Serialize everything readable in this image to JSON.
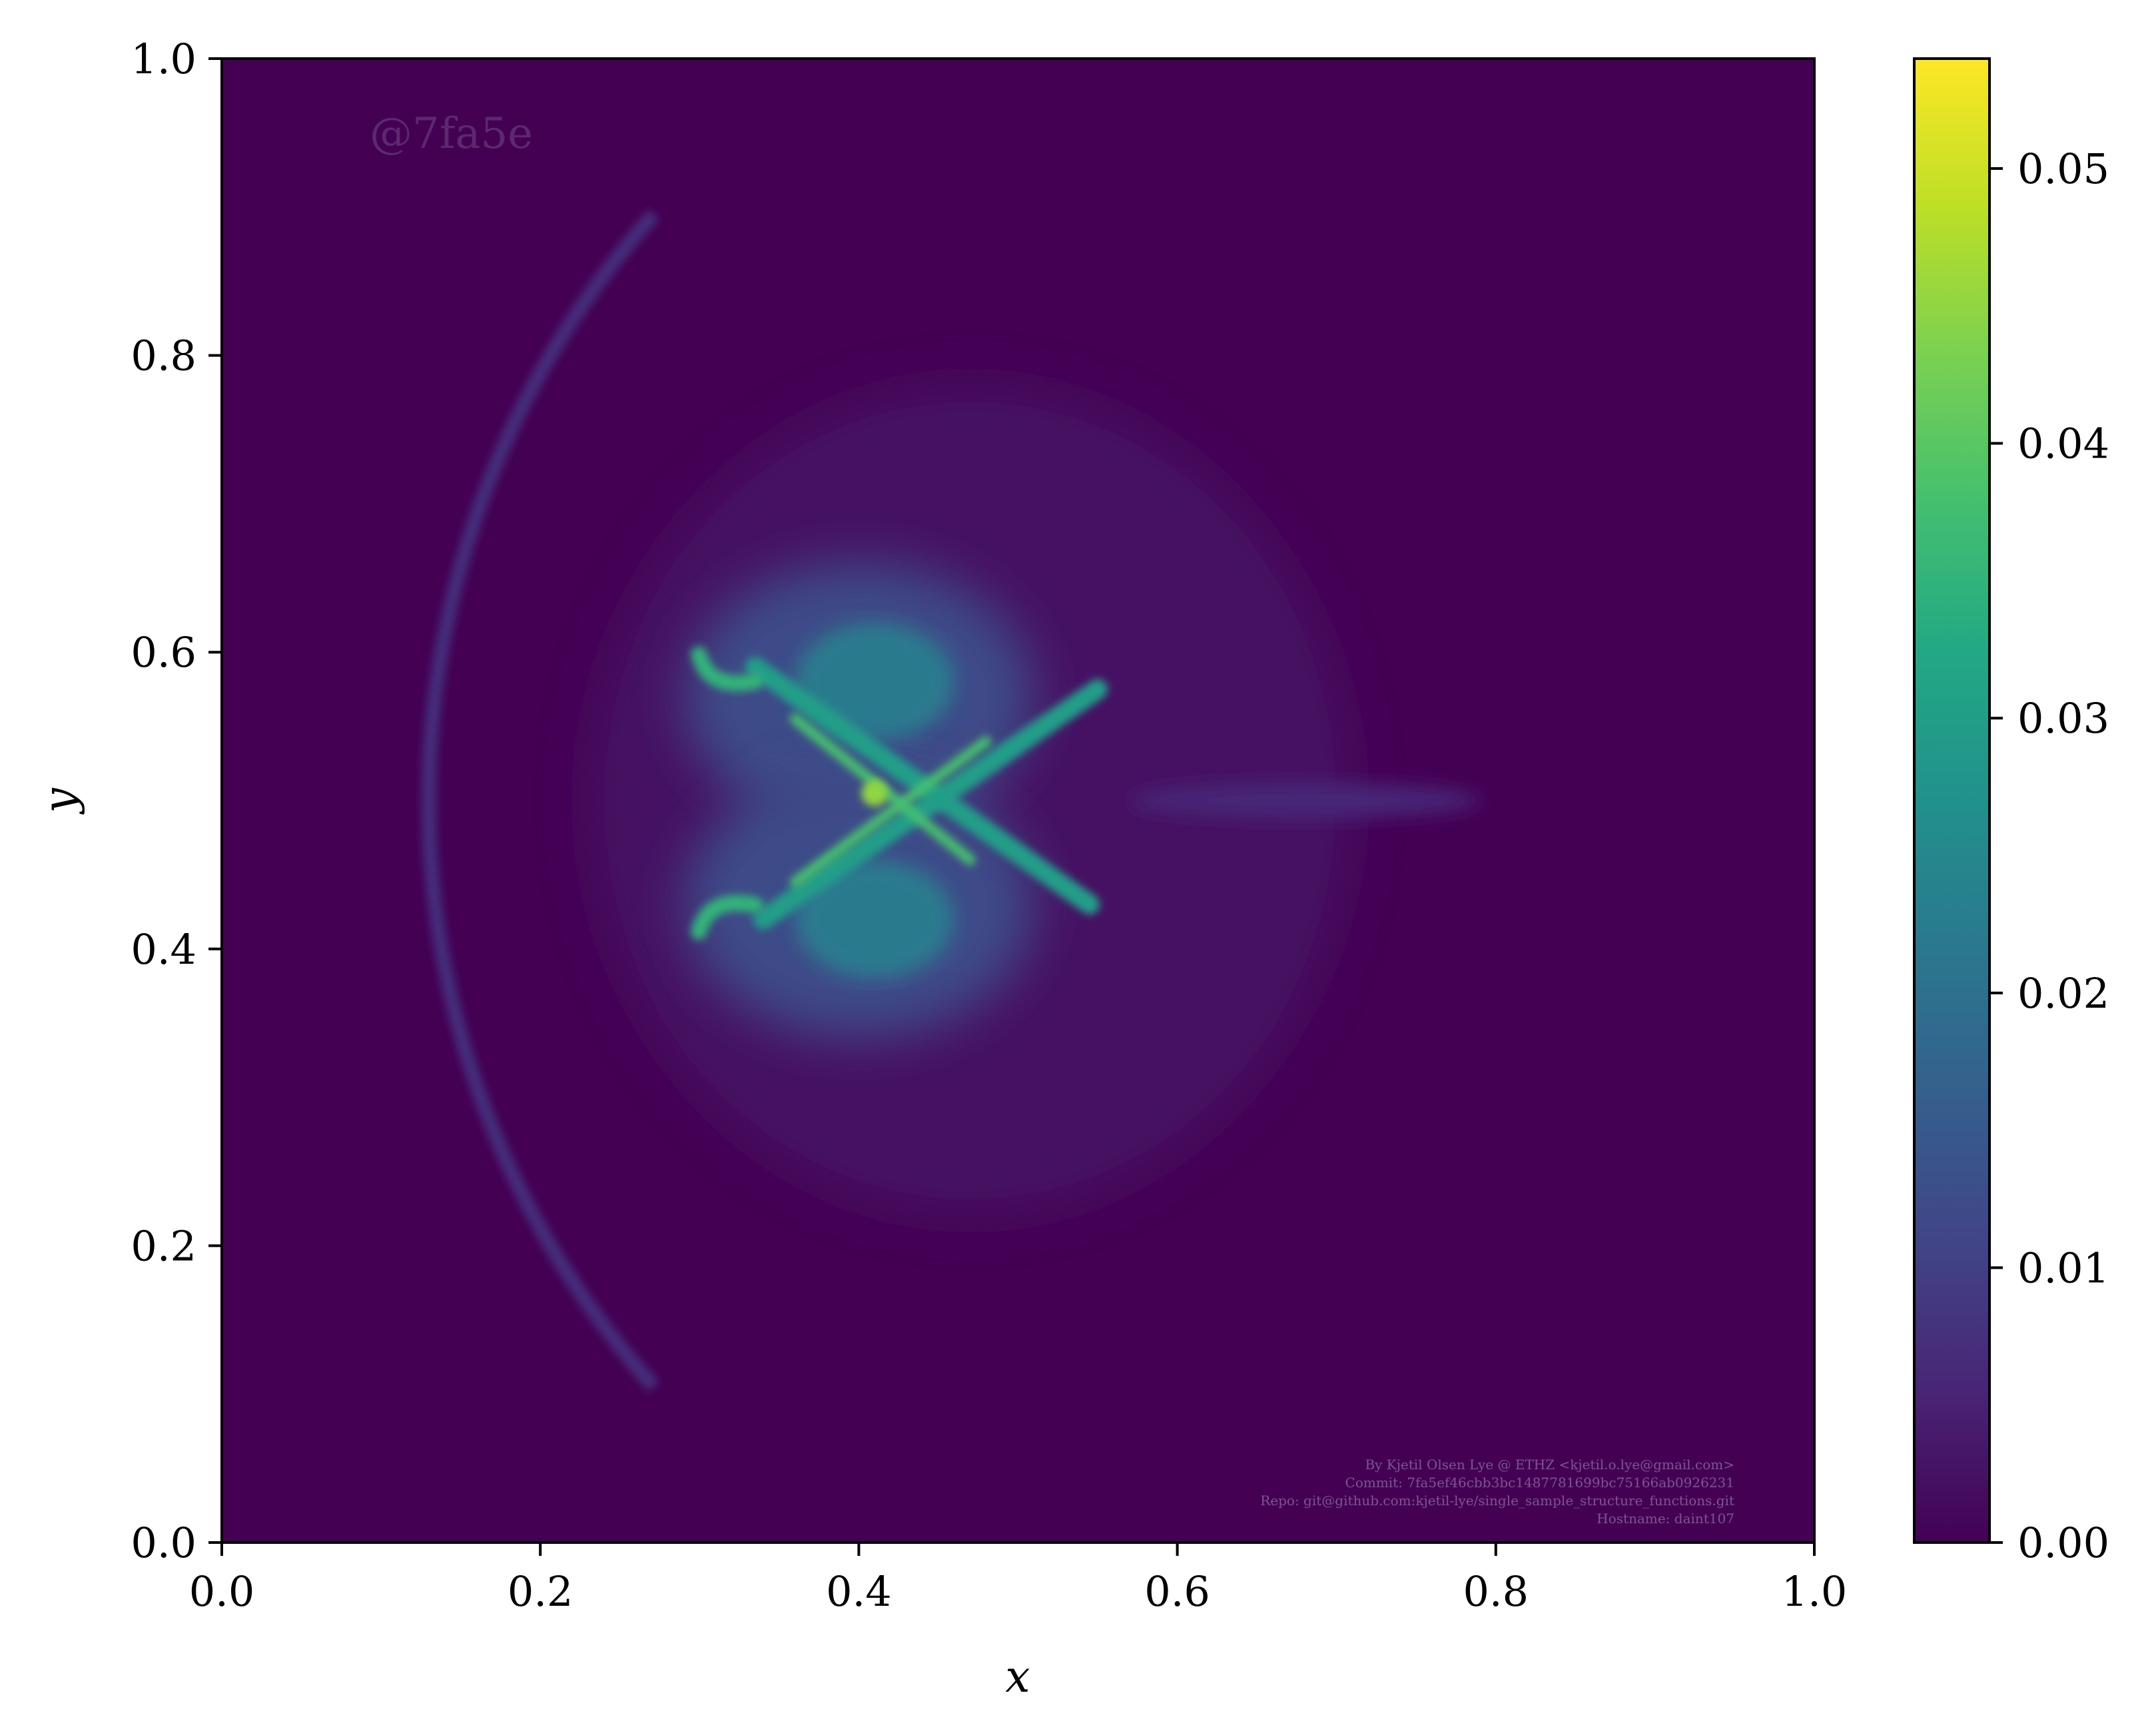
{
  "chart_data": {
    "type": "heatmap",
    "title": "",
    "xlabel": "x",
    "ylabel": "y",
    "xlim": [
      0.0,
      1.0
    ],
    "ylim": [
      0.0,
      1.0
    ],
    "x_ticks": [
      "0.0",
      "0.2",
      "0.4",
      "0.6",
      "0.8",
      "1.0"
    ],
    "y_ticks": [
      "0.0",
      "0.2",
      "0.4",
      "0.6",
      "0.8",
      "1.0"
    ],
    "x_tick_values": [
      0.0,
      0.2,
      0.4,
      0.6,
      0.8,
      1.0
    ],
    "y_tick_values": [
      0.0,
      0.2,
      0.4,
      0.6,
      0.8,
      1.0
    ],
    "colorbar": {
      "colormap": "viridis",
      "range": [
        0.0,
        0.054
      ],
      "ticks": [
        "0.00",
        "0.01",
        "0.02",
        "0.03",
        "0.04",
        "0.05"
      ],
      "tick_values": [
        0.0,
        0.01,
        0.02,
        0.03,
        0.04,
        0.05
      ]
    },
    "grid": false,
    "features": [
      {
        "name": "central-cross",
        "center": [
          0.41,
          0.505
        ],
        "peak_value": 0.045
      },
      {
        "name": "upper-hook",
        "center": [
          0.31,
          0.585
        ],
        "peak_value": 0.035
      },
      {
        "name": "lower-hook",
        "center": [
          0.31,
          0.425
        ],
        "peak_value": 0.035
      },
      {
        "name": "upper-blob",
        "center": [
          0.4,
          0.57
        ],
        "peak_value": 0.022
      },
      {
        "name": "lower-blob",
        "center": [
          0.4,
          0.43
        ],
        "peak_value": 0.022
      },
      {
        "name": "bow-shock-arc",
        "center": [
          0.68,
          0.5
        ],
        "radius": 0.55,
        "peak_value": 0.008
      },
      {
        "name": "trailing-jet",
        "center": [
          0.68,
          0.5
        ],
        "peak_value": 0.006
      }
    ]
  },
  "watermark": "@7fa5e",
  "credits": [
    "By Kjetil Olsen Lye @ ETHZ <kjetil.o.lye@gmail.com>",
    "Commit: 7fa5ef46cbb3bc1487781699bc75166ab0926231",
    "Repo: git@github.com:kjetil-lye/single_sample_structure_functions.git",
    "Hostname: daint107"
  ],
  "colors": {
    "background": "#440154",
    "frame": "#000000"
  }
}
